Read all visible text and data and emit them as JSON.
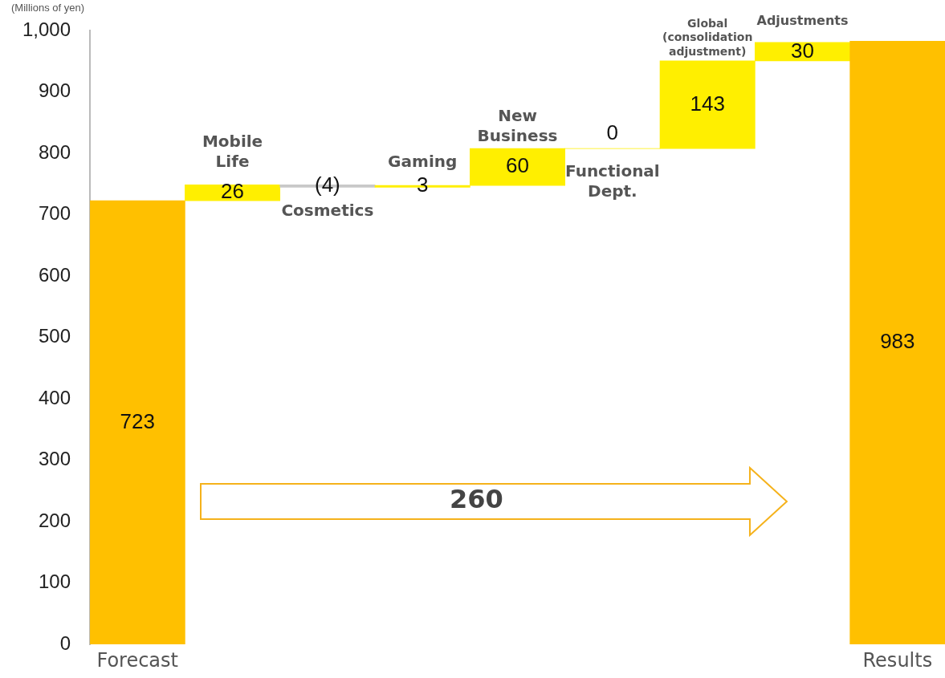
{
  "chart_data": {
    "type": "bar",
    "ylabel": "(Millions of yen)",
    "categories": [
      "Forecast",
      "Mobile Life",
      "Cosmetics",
      "Gaming",
      "New Business",
      "Functional Dept.",
      "Global (consolidation adjustment)",
      "Adjustments",
      "Results"
    ],
    "base": [
      0,
      723,
      749,
      745,
      748,
      808,
      808,
      951,
      0
    ],
    "values": [
      723,
      26,
      -4,
      3,
      60,
      0,
      143,
      30,
      983
    ],
    "colors": [
      "#ffc000",
      "#ffef00",
      "#c8c8c8",
      "#ffef00",
      "#ffef00",
      "#ffef00",
      "#ffef00",
      "#ffef00",
      "#ffc000"
    ],
    "value_labels": [
      "723",
      "26",
      "(4)",
      "3",
      "60",
      "0",
      "143",
      "30",
      "983"
    ],
    "ylim": [
      0,
      1000
    ],
    "yticks": [
      0,
      100,
      200,
      300,
      400,
      500,
      600,
      700,
      800,
      900,
      {
        "value": 1000,
        "label": "1,000"
      }
    ],
    "grid": false,
    "legend": false,
    "annotations": [
      "260"
    ]
  }
}
